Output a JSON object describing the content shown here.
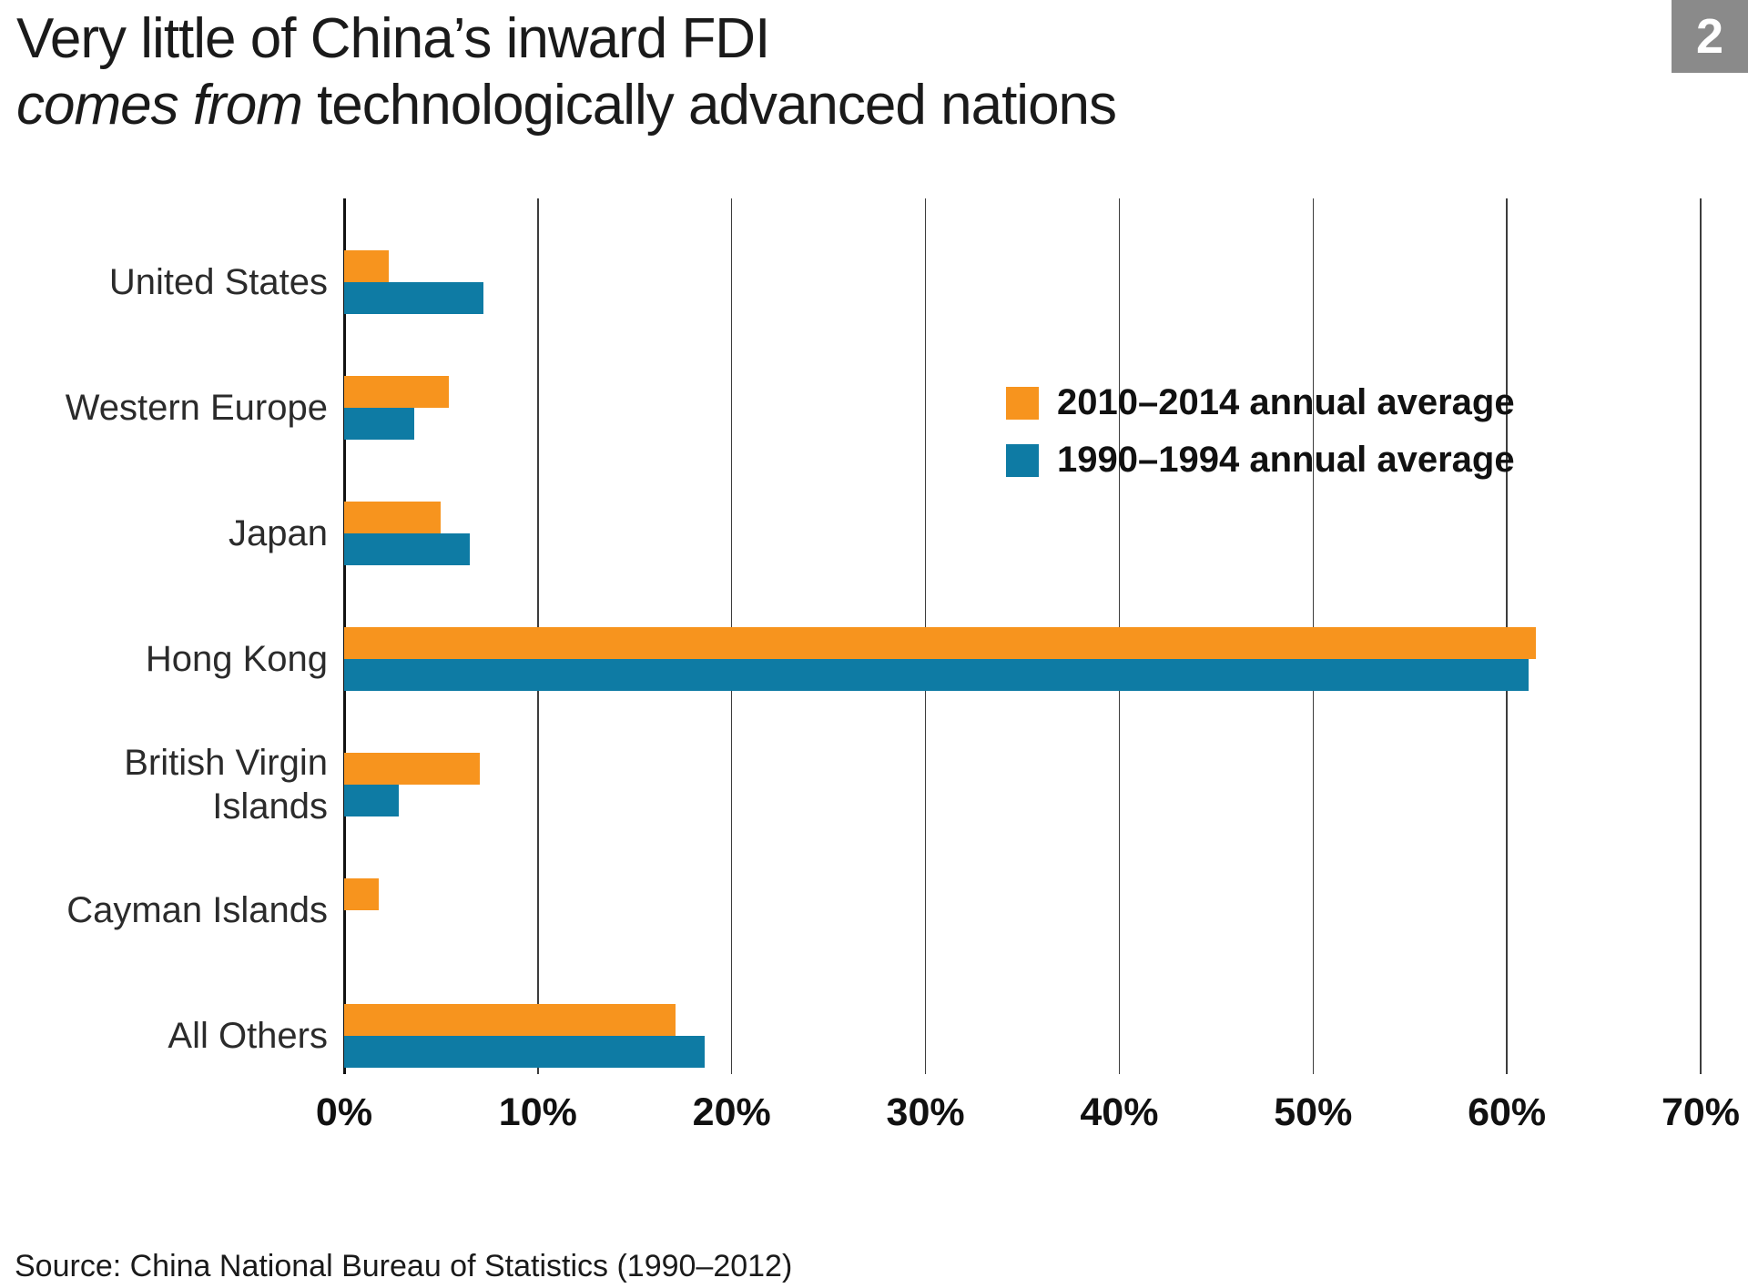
{
  "page": {
    "title_line1": "Very little of China’s inward FDI",
    "title_line2_italic": "comes from",
    "title_line2_rest": " technologically advanced nations",
    "badge": "2",
    "source": "Source: China National Bureau of Statistics (1990–2012)"
  },
  "colors": {
    "orange": "#F7941E",
    "blue": "#0E7BA4",
    "badge_gray": "#8A8A8A",
    "gridline": "#3D3D3D",
    "axis": "#111111"
  },
  "chart_data": {
    "type": "bar",
    "orientation": "horizontal",
    "title": "Very little of China’s inward FDI comes from technologically advanced nations",
    "categories": [
      "United States",
      "Western Europe",
      "Japan",
      "Hong Kong",
      "British Virgin Islands",
      "Cayman Islands",
      "All Others"
    ],
    "series": [
      {
        "name": "2010–2014 annual average",
        "color": "#F7941E",
        "values": [
          2.3,
          5.4,
          5.0,
          61.5,
          7.0,
          1.8,
          17.1
        ]
      },
      {
        "name": "1990–1994 annual average",
        "color": "#0E7BA4",
        "values": [
          7.2,
          3.6,
          6.5,
          61.1,
          2.8,
          0,
          18.6
        ]
      }
    ],
    "xlabel": "",
    "ylabel": "",
    "xlim": [
      0,
      70
    ],
    "xtick_step": 10,
    "xtick_labels": [
      "0%",
      "10%",
      "20%",
      "30%",
      "40%",
      "50%",
      "60%",
      "70%"
    ],
    "grid": true,
    "legend_position": "inside-upper-right",
    "source": "Source: China National Bureau of Statistics (1990–2012)"
  }
}
